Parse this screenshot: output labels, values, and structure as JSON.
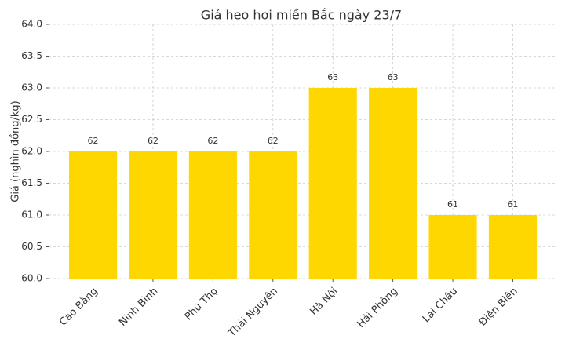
{
  "chart_data": {
    "type": "bar",
    "title": "Giá heo hơi miền Bắc ngày 23/7",
    "y_label": "Giá (nghìn đồng/kg)",
    "categories": [
      "Cao Bằng",
      "Ninh Bình",
      "Phú Thọ",
      "Thái Nguyên",
      "Hà Nội",
      "Hải Phòng",
      "Lai Châu",
      "Điện Biên"
    ],
    "values": [
      62,
      62,
      62,
      62,
      63,
      63,
      61,
      61
    ],
    "color": "#ffd700",
    "ylim": [
      60,
      64
    ],
    "yticks": [
      {
        "value": 60,
        "label": "60.0"
      },
      {
        "value": 60.5,
        "label": "60.5"
      },
      {
        "value": 61,
        "label": "61.0"
      },
      {
        "value": 61.5,
        "label": "61.5"
      },
      {
        "value": 62,
        "label": "62.0"
      },
      {
        "value": 62.5,
        "label": "62.5"
      },
      {
        "value": 63,
        "label": "63.0"
      },
      {
        "value": 63.5,
        "label": "63.5"
      },
      {
        "value": 64,
        "label": "64.0"
      }
    ],
    "grid": true
  }
}
